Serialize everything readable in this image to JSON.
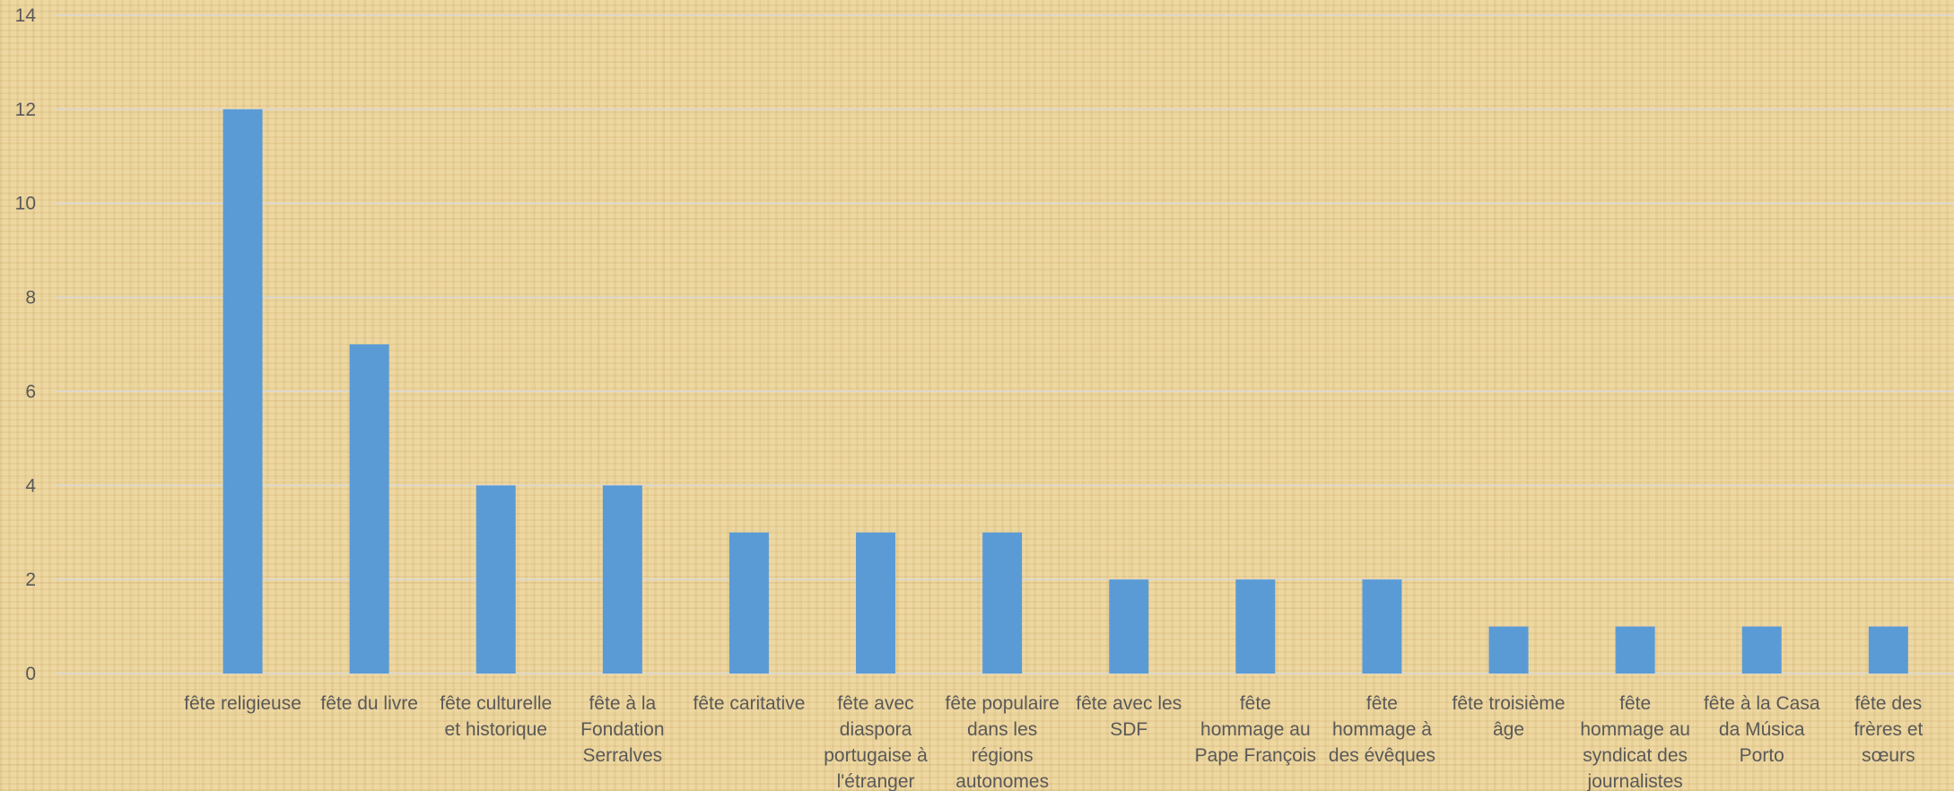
{
  "chart_data": {
    "type": "bar",
    "title": "",
    "xlabel": "",
    "ylabel": "",
    "ylim": [
      0,
      14
    ],
    "yticks": [
      0,
      2,
      4,
      6,
      8,
      10,
      12,
      14
    ],
    "grid": true,
    "legend": "none",
    "bar_color": "#5b9bd5",
    "gridline_color": "#d9d9d9",
    "label_color": "#595959",
    "categories": [
      [
        "fête religieuse"
      ],
      [
        "fête du livre"
      ],
      [
        "fête culturelle",
        "et historique"
      ],
      [
        "fête à la",
        "Fondation",
        "Serralves"
      ],
      [
        "fête caritative"
      ],
      [
        "fête avec",
        "diaspora",
        "portugaise à",
        "l'étranger"
      ],
      [
        "fête populaire",
        "dans les",
        "régions",
        "autonomes"
      ],
      [
        "fête avec les",
        "SDF"
      ],
      [
        "fête",
        "hommage au",
        "Pape François"
      ],
      [
        "fête",
        "hommage à",
        "des évêques"
      ],
      [
        "fête troisième",
        "âge"
      ],
      [
        "fête",
        "hommage au",
        "syndicat des",
        "journalistes"
      ],
      [
        "fête à la Casa",
        "da Música",
        "Porto"
      ],
      [
        "fête des",
        "frères et",
        "sœurs"
      ]
    ],
    "values": [
      12,
      7,
      4,
      4,
      3,
      3,
      3,
      2,
      2,
      2,
      1,
      1,
      1,
      1
    ]
  }
}
